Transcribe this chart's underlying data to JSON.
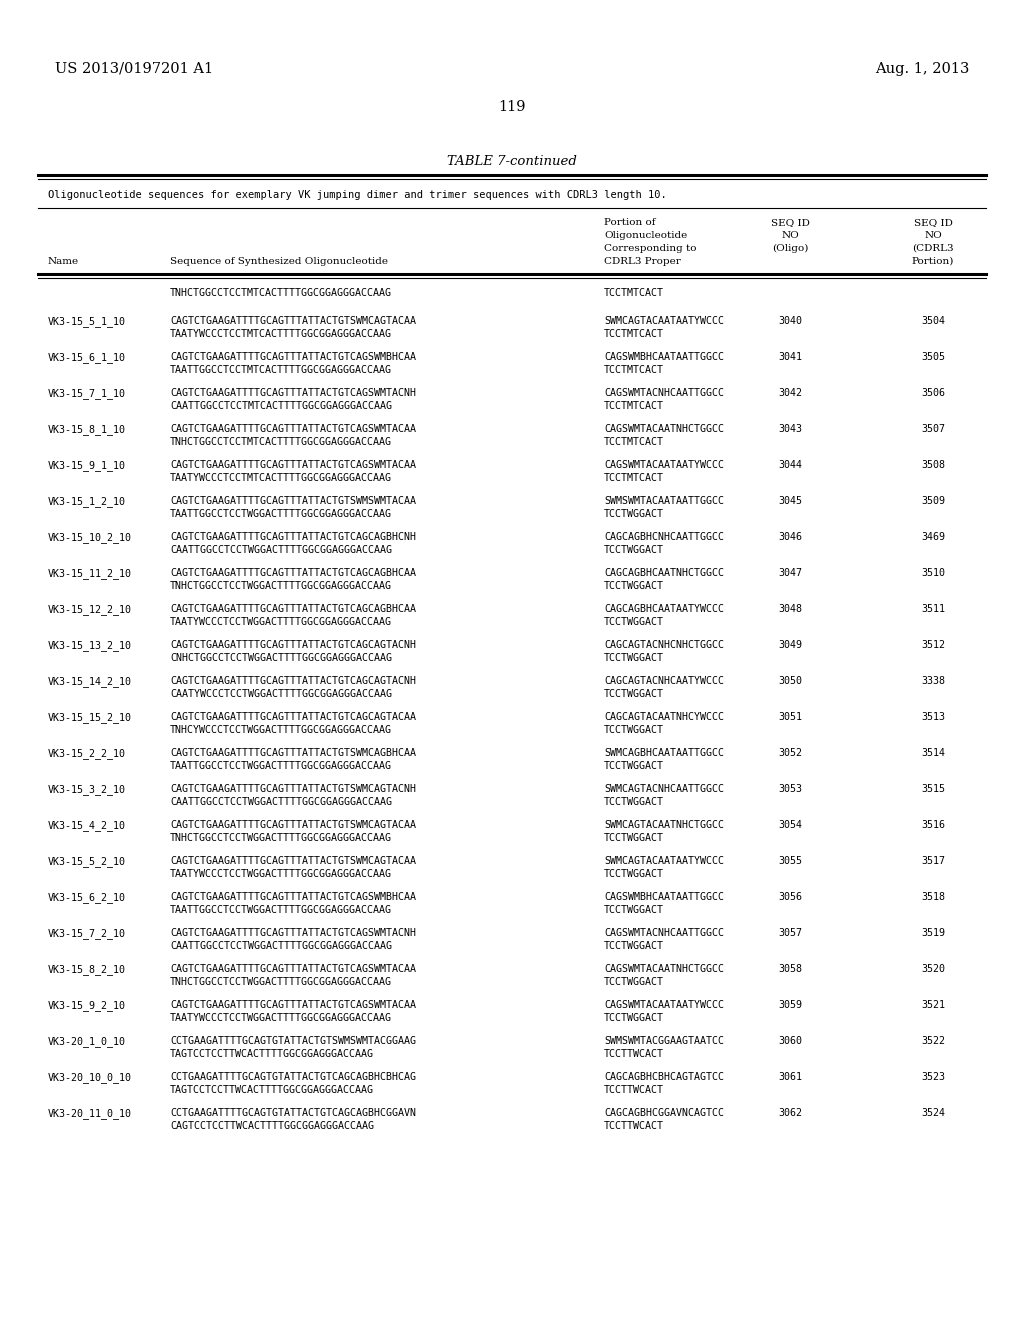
{
  "header_left": "US 2013/0197201 A1",
  "header_right": "Aug. 1, 2013",
  "page_number": "119",
  "table_title": "TABLE 7-continued",
  "table_subtitle": "Oligonucleotide sequences for exemplary VK jumping dimer and trimer sequences with CDRL3 length 10.",
  "continuation_row": {
    "seq": "TNHCTGGCCTCCTMTCACTTTTGGCGGAGGGACCAAG",
    "cdrl3": "TCCTMTCACT"
  },
  "rows": [
    {
      "name": "VK3-15_5_1_10",
      "seq_line1": "CAGTCTGAAGATTTTGCAGTTTATTACTGTSWMCAGTACAA",
      "seq_line2": "TAATYWCCCTCCTMTCACTTTTGGCGGAGGGACCAAG",
      "cdrl3_line1": "SWMCAGTACAATAATYWCCC",
      "cdrl3_line2": "TCCTMTCACT",
      "seqid_oligo": "3040",
      "seqid_cdrl3": "3504"
    },
    {
      "name": "VK3-15_6_1_10",
      "seq_line1": "CAGTCTGAAGATTTTGCAGTTTATTACTGTCAGSWMBHCAA",
      "seq_line2": "TAATTGGCCTCCTMTCACTTTTGGCGGAGGGACCAAG",
      "cdrl3_line1": "CAGSWMBHCAATAATTGGCC",
      "cdrl3_line2": "TCCTMTCACT",
      "seqid_oligo": "3041",
      "seqid_cdrl3": "3505"
    },
    {
      "name": "VK3-15_7_1_10",
      "seq_line1": "CAGTCTGAAGATTTTGCAGTTTATTACTGTCAGSWMTACNH",
      "seq_line2": "CAATTGGCCTCCTMTCACTTTTGGCGGAGGGACCAAG",
      "cdrl3_line1": "CAGSWMTACNHCAATTGGCC",
      "cdrl3_line2": "TCCTMTCACT",
      "seqid_oligo": "3042",
      "seqid_cdrl3": "3506"
    },
    {
      "name": "VK3-15_8_1_10",
      "seq_line1": "CAGTCTGAAGATTTTGCAGTTTATTACTGTCAGSWMTACAA",
      "seq_line2": "TNHCTGGCCTCCTMTCACTTTTGGCGGAGGGACCAAG",
      "cdrl3_line1": "CAGSWMTACAATNHCTGGCC",
      "cdrl3_line2": "TCCTMTCACT",
      "seqid_oligo": "3043",
      "seqid_cdrl3": "3507"
    },
    {
      "name": "VK3-15_9_1_10",
      "seq_line1": "CAGTCTGAAGATTTTGCAGTTTATTACTGTCAGSWMTACAA",
      "seq_line2": "TAATYWCCCTCCTMTCACTTTTGGCGGAGGGACCAAG",
      "cdrl3_line1": "CAGSWMTACAATAATYWCCC",
      "cdrl3_line2": "TCCTMTCACT",
      "seqid_oligo": "3044",
      "seqid_cdrl3": "3508"
    },
    {
      "name": "VK3-15_1_2_10",
      "seq_line1": "CAGTCTGAAGATTTTGCAGTTTATTACTGTSWMSWMTACAA",
      "seq_line2": "TAATTGGCCTCCTWGGACTTTTGGCGGAGGGACCAAG",
      "cdrl3_line1": "SWMSWMTACAATAATTGGCC",
      "cdrl3_line2": "TCCTWGGACT",
      "seqid_oligo": "3045",
      "seqid_cdrl3": "3509"
    },
    {
      "name": "VK3-15_10_2_10",
      "seq_line1": "CAGTCTGAAGATTTTGCAGTTTATTACTGTCAGCAGBHCNH",
      "seq_line2": "CAATTGGCCTCCTWGGACTTTTGGCGGAGGGACCAAG",
      "cdrl3_line1": "CAGCAGBHCNHCAATTGGCC",
      "cdrl3_line2": "TCCTWGGACT",
      "seqid_oligo": "3046",
      "seqid_cdrl3": "3469"
    },
    {
      "name": "VK3-15_11_2_10",
      "seq_line1": "CAGTCTGAAGATTTTGCAGTTTATTACTGTCAGCAGBHCAA",
      "seq_line2": "TNHCTGGCCTCCTWGGACTTTTGGCGGAGGGACCAAG",
      "cdrl3_line1": "CAGCAGBHCAATNHCTGGCC",
      "cdrl3_line2": "TCCTWGGACT",
      "seqid_oligo": "3047",
      "seqid_cdrl3": "3510"
    },
    {
      "name": "VK3-15_12_2_10",
      "seq_line1": "CAGTCTGAAGATTTTGCAGTTTATTACTGTCAGCAGBHCAA",
      "seq_line2": "TAATYWCCCTCCTWGGACTTTTGGCGGAGGGACCAAG",
      "cdrl3_line1": "CAGCAGBHCAATAATYWCCC",
      "cdrl3_line2": "TCCTWGGACT",
      "seqid_oligo": "3048",
      "seqid_cdrl3": "3511"
    },
    {
      "name": "VK3-15_13_2_10",
      "seq_line1": "CAGTCTGAAGATTTTGCAGTTTATTACTGTCAGCAGTACNH",
      "seq_line2": "CNHCTGGCCTCCTWGGACTTTTGGCGGAGGGACCAAG",
      "cdrl3_line1": "CAGCAGTACNHCNHCTGGCC",
      "cdrl3_line2": "TCCTWGGACT",
      "seqid_oligo": "3049",
      "seqid_cdrl3": "3512"
    },
    {
      "name": "VK3-15_14_2_10",
      "seq_line1": "CAGTCTGAAGATTTTGCAGTTTATTACTGTCAGCAGTACNH",
      "seq_line2": "CAATYWCCCTCCTWGGACTTTTGGCGGAGGGACCAAG",
      "cdrl3_line1": "CAGCAGTACNHCAATYWCCC",
      "cdrl3_line2": "TCCTWGGACT",
      "seqid_oligo": "3050",
      "seqid_cdrl3": "3338"
    },
    {
      "name": "VK3-15_15_2_10",
      "seq_line1": "CAGTCTGAAGATTTTGCAGTTTATTACTGTCAGCAGTACAA",
      "seq_line2": "TNHCYWCCCTCCTWGGACTTTTGGCGGAGGGACCAAG",
      "cdrl3_line1": "CAGCAGTACAATNHCYWCCC",
      "cdrl3_line2": "TCCTWGGACT",
      "seqid_oligo": "3051",
      "seqid_cdrl3": "3513"
    },
    {
      "name": "VK3-15_2_2_10",
      "seq_line1": "CAGTCTGAAGATTTTGCAGTTTATTACTGTSWMCAGBHCAA",
      "seq_line2": "TAATTGGCCTCCTWGGACTTTTGGCGGAGGGACCAAG",
      "cdrl3_line1": "SWMCAGBHCAATAATTGGCC",
      "cdrl3_line2": "TCCTWGGACT",
      "seqid_oligo": "3052",
      "seqid_cdrl3": "3514"
    },
    {
      "name": "VK3-15_3_2_10",
      "seq_line1": "CAGTCTGAAGATTTTGCAGTTTATTACTGTSWMCAGTACNH",
      "seq_line2": "CAATTGGCCTCCTWGGACTTTTGGCGGAGGGACCAAG",
      "cdrl3_line1": "SWMCAGTACNHCAATTGGCC",
      "cdrl3_line2": "TCCTWGGACT",
      "seqid_oligo": "3053",
      "seqid_cdrl3": "3515"
    },
    {
      "name": "VK3-15_4_2_10",
      "seq_line1": "CAGTCTGAAGATTTTGCAGTTTATTACTGTSWMCAGTACAA",
      "seq_line2": "TNHCTGGCCTCCTWGGACTTTTGGCGGAGGGACCAAG",
      "cdrl3_line1": "SWMCAGTACAATNHCTGGCC",
      "cdrl3_line2": "TCCTWGGACT",
      "seqid_oligo": "3054",
      "seqid_cdrl3": "3516"
    },
    {
      "name": "VK3-15_5_2_10",
      "seq_line1": "CAGTCTGAAGATTTTGCAGTTTATTACTGTSWMCAGTACAA",
      "seq_line2": "TAATYWCCCTCCTWGGACTTTTGGCGGAGGGACCAAG",
      "cdrl3_line1": "SWMCAGTACAATAATYWCCC",
      "cdrl3_line2": "TCCTWGGACT",
      "seqid_oligo": "3055",
      "seqid_cdrl3": "3517"
    },
    {
      "name": "VK3-15_6_2_10",
      "seq_line1": "CAGTCTGAAGATTTTGCAGTTTATTACTGTCAGSWMBHCAA",
      "seq_line2": "TAATTGGCCTCCTWGGACTTTTGGCGGAGGGACCAAG",
      "cdrl3_line1": "CAGSWMBHCAATAATTGGCC",
      "cdrl3_line2": "TCCTWGGACT",
      "seqid_oligo": "3056",
      "seqid_cdrl3": "3518"
    },
    {
      "name": "VK3-15_7_2_10",
      "seq_line1": "CAGTCTGAAGATTTTGCAGTTTATTACTGTCAGSWMTACNH",
      "seq_line2": "CAATTGGCCTCCTWGGACTTTTGGCGGAGGGACCAAG",
      "cdrl3_line1": "CAGSWMTACNHCAATTGGCC",
      "cdrl3_line2": "TCCTWGGACT",
      "seqid_oligo": "3057",
      "seqid_cdrl3": "3519"
    },
    {
      "name": "VK3-15_8_2_10",
      "seq_line1": "CAGTCTGAAGATTTTGCAGTTTATTACTGTCAGSWMTACAA",
      "seq_line2": "TNHCTGGCCTCCTWGGACTTTTGGCGGAGGGACCAAG",
      "cdrl3_line1": "CAGSWMTACAATNHCTGGCC",
      "cdrl3_line2": "TCCTWGGACT",
      "seqid_oligo": "3058",
      "seqid_cdrl3": "3520"
    },
    {
      "name": "VK3-15_9_2_10",
      "seq_line1": "CAGTCTGAAGATTTTGCAGTTTATTACTGTCAGSWMTACAA",
      "seq_line2": "TAATYWCCCTCCTWGGACTTTTGGCGGAGGGACCAAG",
      "cdrl3_line1": "CAGSWMTACAATAATYWCCC",
      "cdrl3_line2": "TCCTWGGACT",
      "seqid_oligo": "3059",
      "seqid_cdrl3": "3521"
    },
    {
      "name": "VK3-20_1_0_10",
      "seq_line1": "CCTGAAGATTTTGCAGTGTATTACTGTSWMSWMTACGGAAG",
      "seq_line2": "TAGTCCTCCTTWCACTTTTGGCGGAGGGACCAAG",
      "cdrl3_line1": "SWMSWMTACGGAAGTAATCC",
      "cdrl3_line2": "TCCTTWCACT",
      "seqid_oligo": "3060",
      "seqid_cdrl3": "3522"
    },
    {
      "name": "VK3-20_10_0_10",
      "seq_line1": "CCTGAAGATTTTGCAGTGTATTACTGTCAGCAGBHCBHCAG",
      "seq_line2": "TAGTCCTCCTTWCACTTTTGGCGGAGGGACCAAG",
      "cdrl3_line1": "CAGCAGBHCBHCAGTAGTCC",
      "cdrl3_line2": "TCCTTWCACT",
      "seqid_oligo": "3061",
      "seqid_cdrl3": "3523"
    },
    {
      "name": "VK3-20_11_0_10",
      "seq_line1": "CCTGAAGATTTTGCAGTGTATTACTGTCAGCAGBHCGGAVN",
      "seq_line2": "CAGTCCTCCTTWCACTTTTGGCGGAGGGACCAAG",
      "cdrl3_line1": "CAGCAGBHCGGAVNCAGTCC",
      "cdrl3_line2": "TCCTTWCACT",
      "seqid_oligo": "3062",
      "seqid_cdrl3": "3524"
    }
  ],
  "bg_color": "#ffffff",
  "text_color": "#000000"
}
